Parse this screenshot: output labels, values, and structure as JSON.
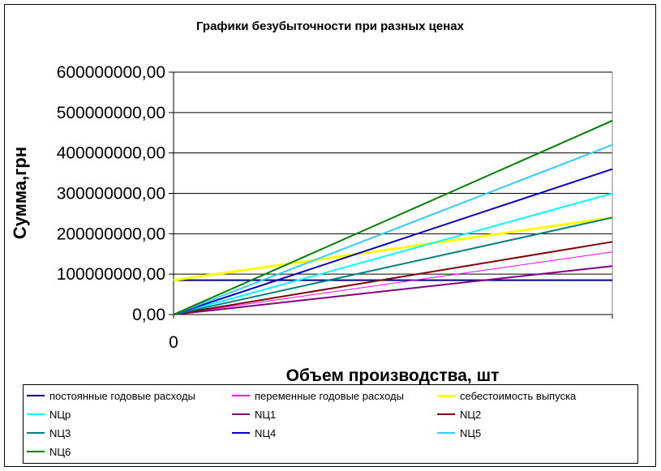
{
  "chart_data": {
    "type": "line",
    "title": "Графики безубыточности при разных ценах",
    "xlabel": "Объем производства, шт",
    "ylabel": "Сумма,грн",
    "x_tick_labels": [
      "0"
    ],
    "yticks": [
      {
        "value": 0,
        "label": "0,00"
      },
      {
        "value": 100000000,
        "label": "100000000,00"
      },
      {
        "value": 200000000,
        "label": "200000000,00"
      },
      {
        "value": 300000000,
        "label": "300000000,00"
      },
      {
        "value": 400000000,
        "label": "400000000,00"
      },
      {
        "value": 500000000,
        "label": "500000000,00"
      },
      {
        "value": 600000000,
        "label": "600000000,00"
      }
    ],
    "ylim": [
      0,
      600000000
    ],
    "grid": true,
    "legend_position": "bottom",
    "series": [
      {
        "name": "постоянные годовые расходы",
        "color": "#000080",
        "width": 2,
        "start": 85000000,
        "end": 85000000
      },
      {
        "name": "переменные годовые расходы",
        "color": "#ff00ff",
        "width": 1,
        "start": 0,
        "end": 155000000
      },
      {
        "name": "себестоимость выпуска",
        "color": "#ffff00",
        "width": 3,
        "start": 85000000,
        "end": 240000000
      },
      {
        "name": "NЦр",
        "color": "#00ffff",
        "width": 2,
        "start": 0,
        "end": 300000000
      },
      {
        "name": "NЦ1",
        "color": "#800080",
        "width": 2,
        "start": 0,
        "end": 120000000
      },
      {
        "name": "NЦ2",
        "color": "#800000",
        "width": 2,
        "start": 0,
        "end": 180000000
      },
      {
        "name": "NЦ3",
        "color": "#008080",
        "width": 2,
        "start": 0,
        "end": 240000000
      },
      {
        "name": "NЦ4",
        "color": "#0000cc",
        "width": 2,
        "start": 0,
        "end": 360000000
      },
      {
        "name": "NЦ5",
        "color": "#33ccff",
        "width": 2,
        "start": 0,
        "end": 420000000
      },
      {
        "name": "NЦ6",
        "color": "#008000",
        "width": 2,
        "start": 0,
        "end": 480000000
      }
    ]
  }
}
